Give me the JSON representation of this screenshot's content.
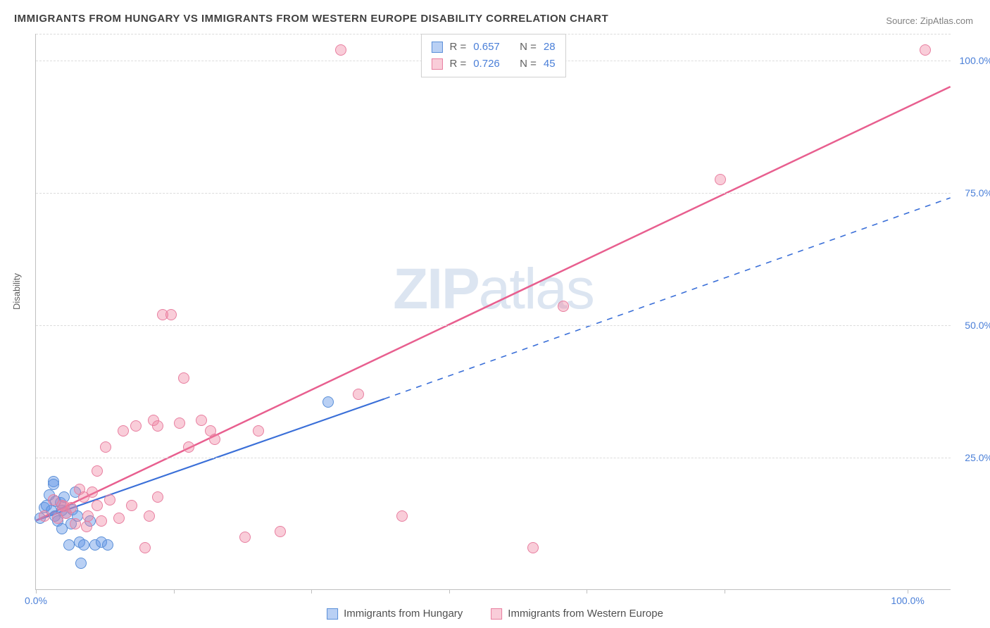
{
  "title": "IMMIGRANTS FROM HUNGARY VS IMMIGRANTS FROM WESTERN EUROPE DISABILITY CORRELATION CHART",
  "source_label": "Source:",
  "source_name": "ZipAtlas.com",
  "ylabel": "Disability",
  "watermark": "ZIPatlas",
  "chart": {
    "type": "scatter",
    "xlim": [
      0,
      105
    ],
    "ylim": [
      0,
      105
    ],
    "xtick_positions": [
      0,
      15.8,
      31.6,
      47.4,
      63.2,
      79.0,
      100
    ],
    "xtick_labels_shown": {
      "0": "0.0%",
      "100": "100.0%"
    },
    "ytick_positions": [
      25,
      50,
      75,
      100
    ],
    "ytick_labels": [
      "25.0%",
      "50.0%",
      "75.0%",
      "100.0%"
    ],
    "grid_color": "#dcdcdc",
    "background_color": "#ffffff"
  },
  "series": [
    {
      "name": "Immigrants from Hungary",
      "marker_fill": "rgba(100, 150, 230, 0.45)",
      "marker_stroke": "#5a8fd8",
      "line_color": "#3a6fd8",
      "line_width": 2.2,
      "r_value": "0.657",
      "n_value": "28",
      "trend_solid": {
        "x1": 0,
        "y1": 13,
        "x2": 40,
        "y2": 36
      },
      "trend_dash": {
        "x1": 40,
        "y1": 36,
        "x2": 105,
        "y2": 74
      },
      "points": [
        [
          0.5,
          13.5
        ],
        [
          1.0,
          15.5
        ],
        [
          1.2,
          16.0
        ],
        [
          1.5,
          18.0
        ],
        [
          1.8,
          15.0
        ],
        [
          2.0,
          20.5
        ],
        [
          2.2,
          14.0
        ],
        [
          2.5,
          13.0
        ],
        [
          2.8,
          16.5
        ],
        [
          3.0,
          11.5
        ],
        [
          3.2,
          17.5
        ],
        [
          3.5,
          14.5
        ],
        [
          3.8,
          8.5
        ],
        [
          4.0,
          12.5
        ],
        [
          4.2,
          15.2
        ],
        [
          4.5,
          18.5
        ],
        [
          4.8,
          14.0
        ],
        [
          5.0,
          9.0
        ],
        [
          5.5,
          8.5
        ],
        [
          6.2,
          13.0
        ],
        [
          6.8,
          8.5
        ],
        [
          7.5,
          9.0
        ],
        [
          8.2,
          8.5
        ],
        [
          5.2,
          5.0
        ],
        [
          2.0,
          20.0
        ],
        [
          2.3,
          16.8
        ],
        [
          33.5,
          35.5
        ],
        [
          3.0,
          15.0
        ]
      ]
    },
    {
      "name": "Immigrants from Western Europe",
      "marker_fill": "rgba(240, 130, 160, 0.40)",
      "marker_stroke": "#e87fa0",
      "line_color": "#e85f8f",
      "line_width": 2.5,
      "r_value": "0.726",
      "n_value": "45",
      "trend_solid": {
        "x1": 0,
        "y1": 13,
        "x2": 105,
        "y2": 95
      },
      "trend_dash": null,
      "points": [
        [
          1.0,
          14.0
        ],
        [
          2.0,
          17.0
        ],
        [
          2.5,
          13.5
        ],
        [
          3.0,
          16.0
        ],
        [
          3.5,
          14.5
        ],
        [
          4.0,
          15.5
        ],
        [
          4.5,
          12.5
        ],
        [
          5.0,
          19.0
        ],
        [
          5.5,
          17.5
        ],
        [
          6.0,
          14.0
        ],
        [
          6.5,
          18.5
        ],
        [
          7.0,
          16.0
        ],
        [
          7.5,
          13.0
        ],
        [
          7.0,
          22.5
        ],
        [
          8.5,
          17.0
        ],
        [
          9.5,
          13.5
        ],
        [
          10.0,
          30.0
        ],
        [
          11.0,
          16.0
        ],
        [
          11.5,
          31.0
        ],
        [
          13.0,
          14.0
        ],
        [
          13.5,
          32.0
        ],
        [
          14.0,
          17.5
        ],
        [
          14.0,
          31.0
        ],
        [
          14.5,
          52.0
        ],
        [
          15.5,
          52.0
        ],
        [
          16.5,
          31.5
        ],
        [
          17.0,
          40.0
        ],
        [
          17.5,
          27.0
        ],
        [
          19.0,
          32.0
        ],
        [
          20.0,
          30.0
        ],
        [
          20.5,
          28.5
        ],
        [
          24.0,
          10.0
        ],
        [
          25.5,
          30.0
        ],
        [
          28.0,
          11.0
        ],
        [
          35.0,
          102.0
        ],
        [
          37.0,
          37.0
        ],
        [
          42.0,
          14.0
        ],
        [
          57.0,
          8.0
        ],
        [
          60.5,
          53.5
        ],
        [
          12.5,
          8.0
        ],
        [
          78.5,
          77.5
        ],
        [
          102.0,
          102.0
        ],
        [
          5.8,
          12.0
        ],
        [
          8.0,
          27.0
        ],
        [
          3.2,
          15.8
        ]
      ]
    }
  ],
  "stat_legend": {
    "r_label": "R =",
    "n_label": "N ="
  },
  "bottom_legend_labels": [
    "Immigrants from Hungary",
    "Immigrants from Western Europe"
  ]
}
